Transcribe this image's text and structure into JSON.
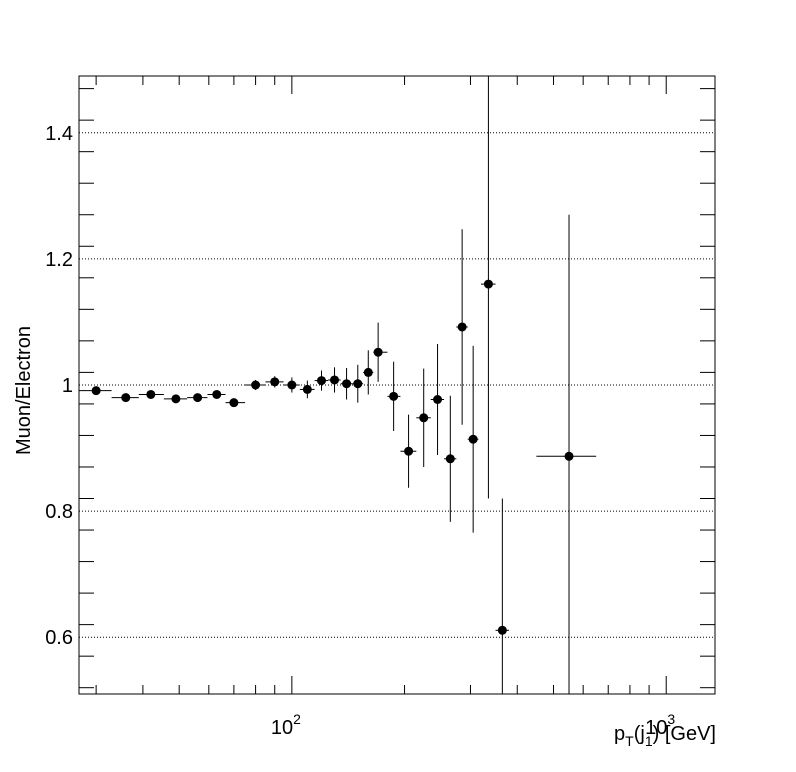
{
  "chart_data": {
    "type": "scatter",
    "xlabel": "p_T(j_1) [GeV]",
    "xlabel_parts": {
      "main": "p",
      "sub_t": "T",
      "open": "(j",
      "sub_1": "1",
      "close": ") [GeV]"
    },
    "ylabel": "Muon/Electron",
    "x_scale": "log",
    "xlim": [
      27,
      1350
    ],
    "ylim": [
      0.51,
      1.49
    ],
    "y_ticks": [
      "0.6",
      "0.8",
      "1",
      "1.2",
      "1.4"
    ],
    "y_tick_values": [
      0.6,
      0.8,
      1.0,
      1.2,
      1.4
    ],
    "x_major_ticks": [
      {
        "value": 100,
        "base": "10",
        "exp": "2"
      },
      {
        "value": 1000,
        "base": "10",
        "exp": "3"
      }
    ],
    "grid": "horizontal dotted at y major ticks",
    "legend": "none",
    "colors": {
      "marker": "#000000",
      "grid": "#000000"
    },
    "series": [
      {
        "points": [
          {
            "x": 30,
            "xlow": 27,
            "xhigh": 33,
            "y": 0.991,
            "yerr": 0.004
          },
          {
            "x": 36,
            "xlow": 33,
            "xhigh": 39,
            "y": 0.98,
            "yerr": 0.004
          },
          {
            "x": 42,
            "xlow": 39,
            "xhigh": 45.5,
            "y": 0.985,
            "yerr": 0.004
          },
          {
            "x": 49,
            "xlow": 45.5,
            "xhigh": 52.5,
            "y": 0.978,
            "yerr": 0.004
          },
          {
            "x": 56,
            "xlow": 52.5,
            "xhigh": 59.5,
            "y": 0.98,
            "yerr": 0.005
          },
          {
            "x": 63,
            "xlow": 59.5,
            "xhigh": 66.5,
            "y": 0.985,
            "yerr": 0.005
          },
          {
            "x": 70,
            "xlow": 66.5,
            "xhigh": 75,
            "y": 0.972,
            "yerr": 0.006
          },
          {
            "x": 80,
            "xlow": 75,
            "xhigh": 85,
            "y": 1.0,
            "yerr": 0.008
          },
          {
            "x": 90,
            "xlow": 85,
            "xhigh": 95,
            "y": 1.005,
            "yerr": 0.009
          },
          {
            "x": 100,
            "xlow": 95,
            "xhigh": 105,
            "y": 1.0,
            "yerr": 0.012
          },
          {
            "x": 110,
            "xlow": 105,
            "xhigh": 115,
            "y": 0.993,
            "yerr": 0.014
          },
          {
            "x": 120,
            "xlow": 115,
            "xhigh": 125,
            "y": 1.007,
            "yerr": 0.016
          },
          {
            "x": 130,
            "xlow": 125,
            "xhigh": 135,
            "y": 1.008,
            "yerr": 0.02
          },
          {
            "x": 140,
            "xlow": 135,
            "xhigh": 145,
            "y": 1.002,
            "yerr": 0.025
          },
          {
            "x": 150,
            "xlow": 145,
            "xhigh": 155,
            "y": 1.002,
            "yerr": 0.03
          },
          {
            "x": 160,
            "xlow": 155,
            "xhigh": 165,
            "y": 1.02,
            "yerr": 0.035
          },
          {
            "x": 170,
            "xlow": 165,
            "xhigh": 180,
            "y": 1.052,
            "yerr": 0.047
          },
          {
            "x": 187,
            "xlow": 180,
            "xhigh": 195,
            "y": 0.982,
            "yerr": 0.055
          },
          {
            "x": 205,
            "xlow": 195,
            "xhigh": 215,
            "y": 0.895,
            "yerr": 0.058
          },
          {
            "x": 225,
            "xlow": 215,
            "xhigh": 235,
            "y": 0.948,
            "yerr": 0.078
          },
          {
            "x": 245,
            "xlow": 235,
            "xhigh": 255,
            "y": 0.977,
            "yerr": 0.088
          },
          {
            "x": 265,
            "xlow": 255,
            "xhigh": 275,
            "y": 0.883,
            "yerr": 0.1
          },
          {
            "x": 285,
            "xlow": 275,
            "xhigh": 295,
            "y": 1.092,
            "yerr": 0.155
          },
          {
            "x": 305,
            "xlow": 295,
            "xhigh": 315,
            "y": 0.914,
            "yerr": 0.148
          },
          {
            "x": 335,
            "xlow": 320,
            "xhigh": 350,
            "y": 1.16,
            "yerr_low": 0.34,
            "yerr_high": 0.33
          },
          {
            "x": 365,
            "xlow": 350,
            "xhigh": 380,
            "y": 0.611,
            "yerr_low": 0.11,
            "yerr_high": 0.209
          },
          {
            "x": 550,
            "xlow": 450,
            "xhigh": 650,
            "y": 0.887,
            "yerr_low": 0.38,
            "yerr_high": 0.383
          }
        ]
      }
    ]
  }
}
